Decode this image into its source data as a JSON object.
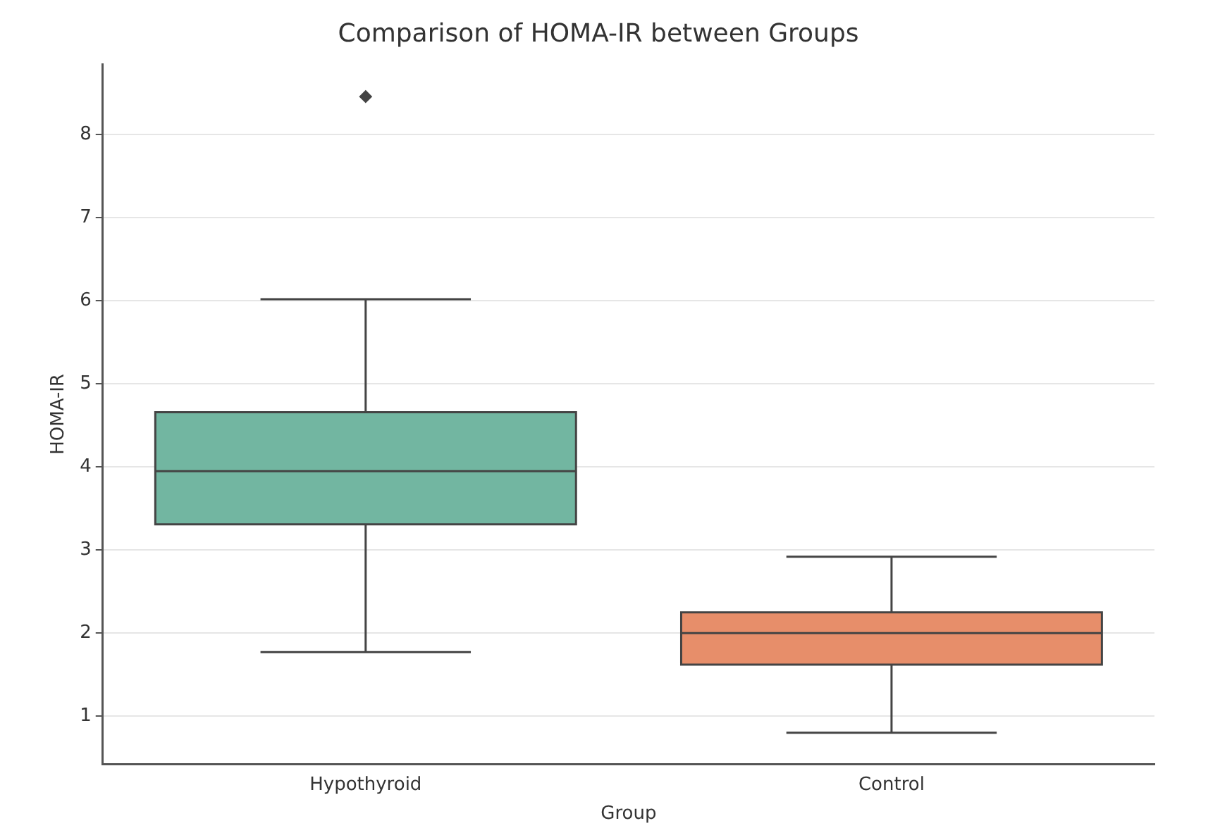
{
  "chart_data": {
    "type": "box",
    "title": "Comparison of HOMA-IR between Groups",
    "xlabel": "Group",
    "ylabel": "HOMA-IR",
    "categories": [
      "Hypothyroid",
      "Control"
    ],
    "colors": [
      "#72b6a1",
      "#e78e6a"
    ],
    "boxes": [
      {
        "low": 1.77,
        "q1": 3.31,
        "median": 3.95,
        "q3": 4.66,
        "high": 6.02,
        "outliers": [
          8.46
        ]
      },
      {
        "low": 0.8,
        "q1": 1.62,
        "median": 2.0,
        "q3": 2.25,
        "high": 2.92
      }
    ],
    "ylim": [
      0.42,
      8.85
    ],
    "yticks": [
      1,
      2,
      3,
      4,
      5,
      6,
      7,
      8
    ],
    "grid": "y",
    "legend": false,
    "marker": "diamond"
  }
}
